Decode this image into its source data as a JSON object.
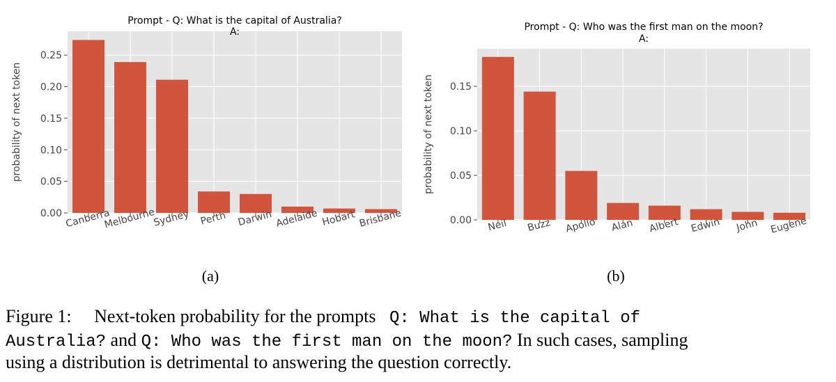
{
  "colors": {
    "bar": "#D1553C",
    "plot_bg": "#E5E5E5",
    "grid": "#FFFFFF",
    "text": "#444444"
  },
  "chart_data": [
    {
      "type": "bar",
      "title": "Prompt - Q: What is the capital of Australia?\nA:",
      "title_lines": [
        "Prompt - Q: What is the capital of Australia?",
        "A:"
      ],
      "xlabel": "",
      "ylabel": "probability of next token",
      "categories": [
        "Canberra",
        "Melbourne",
        "Sydney",
        "Perth",
        "Darwin",
        "Adelaide",
        "Hobart",
        "Brisbane"
      ],
      "values": [
        0.274,
        0.239,
        0.211,
        0.034,
        0.03,
        0.01,
        0.007,
        0.006
      ],
      "yticks": [
        0.0,
        0.05,
        0.1,
        0.15,
        0.2,
        0.25
      ],
      "ytick_labels": [
        "0.00",
        "0.05",
        "0.10",
        "0.15",
        "0.20",
        "0.25"
      ],
      "ylim": [
        0,
        0.2877
      ],
      "grid": true,
      "panel_label": "(a)"
    },
    {
      "type": "bar",
      "title": "Prompt - Q: Who was the first man on the moon?\nA:",
      "title_lines": [
        "Prompt - Q: Who was the first man on the moon?",
        "A:"
      ],
      "xlabel": "",
      "ylabel": "probability of next token",
      "categories": [
        "Neil",
        "Buzz",
        "Apollo",
        "Alan",
        "Albert",
        "Edwin",
        "John",
        "Eugene"
      ],
      "values": [
        0.183,
        0.144,
        0.055,
        0.019,
        0.016,
        0.012,
        0.009,
        0.008
      ],
      "yticks": [
        0.0,
        0.05,
        0.1,
        0.15
      ],
      "ytick_labels": [
        "0.00",
        "0.05",
        "0.10",
        "0.15"
      ],
      "ylim": [
        0,
        0.1922
      ],
      "grid": true,
      "panel_label": "(b)"
    }
  ],
  "caption": {
    "label": "Figure 1:",
    "text1": "Next-token probability for the prompts",
    "code1": "Q: What is the capital of",
    "code2": "Australia?",
    "joiner": "and",
    "code3": "Q: Who was the first man on the moon?",
    "text2": "In such cases, sampling",
    "text3": "using a distribution is detrimental to answering the question correctly."
  }
}
